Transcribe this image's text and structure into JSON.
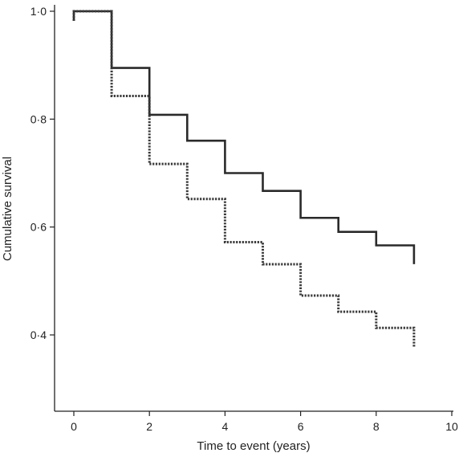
{
  "chart_data": {
    "type": "line",
    "title": "",
    "xlabel": "Time to event (years)",
    "ylabel": "Cumulative survival",
    "xlim": [
      -0.5,
      10
    ],
    "ylim": [
      0.27,
      1.0
    ],
    "xticks": [
      0,
      2,
      4,
      6,
      8,
      10
    ],
    "xtick_labels": [
      "0",
      "2",
      "4",
      "6",
      "8",
      "10"
    ],
    "yticks": [
      0.4,
      0.6,
      0.8,
      1.0
    ],
    "ytick_labels": [
      "0·4",
      "0·6",
      "0·8",
      "1·0"
    ],
    "step": true,
    "grid": false,
    "legend": "none",
    "series": [
      {
        "line_style": "solid",
        "color": "#2a2a2a",
        "x": [
          0,
          1,
          2,
          3,
          4,
          5,
          6,
          7,
          8,
          9
        ],
        "values": [
          1.0,
          0.895,
          0.808,
          0.76,
          0.7,
          0.667,
          0.617,
          0.591,
          0.566,
          0.549
        ]
      },
      {
        "line_style": "dotted",
        "color": "#3a3a3a",
        "x": [
          0,
          1,
          2,
          3,
          4,
          5,
          6,
          7,
          8,
          9
        ],
        "values": [
          1.0,
          0.843,
          0.717,
          0.652,
          0.572,
          0.531,
          0.473,
          0.443,
          0.413,
          0.394
        ]
      }
    ]
  }
}
